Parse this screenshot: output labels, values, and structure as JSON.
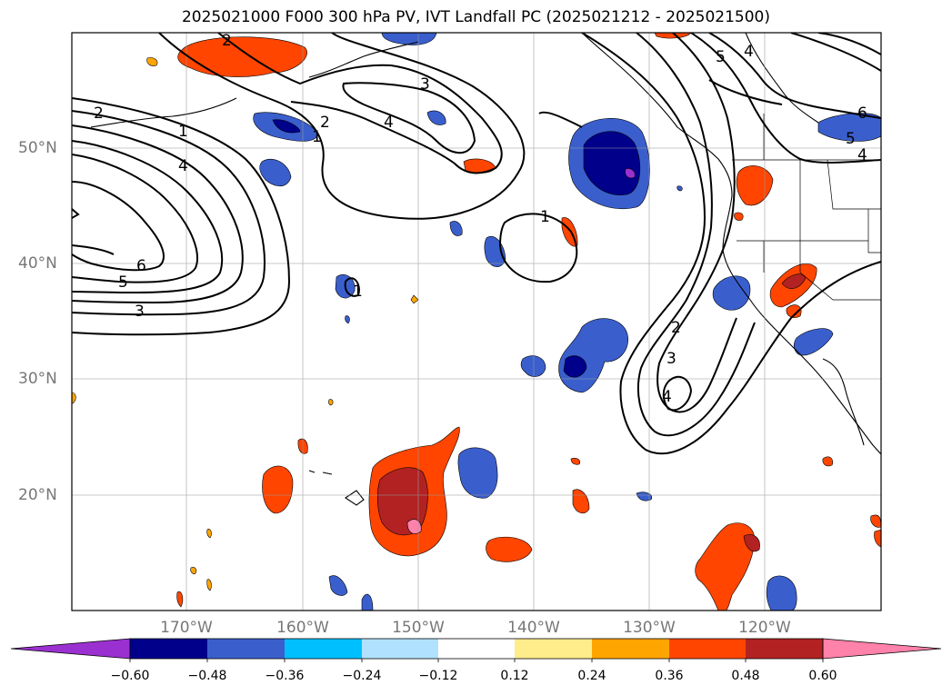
{
  "title": "2025021000 F000 300 hPa PV, IVT Landfall PC (2025021212 - 2025021500)",
  "map": {
    "projection": "PlateCarree",
    "lon_range": [
      -180,
      -110
    ],
    "lat_range": [
      10,
      60
    ],
    "gridlines": true,
    "lat_ticks": [
      {
        "label": "50°N",
        "value": 50
      },
      {
        "label": "40°N",
        "value": 40
      },
      {
        "label": "30°N",
        "value": 30
      },
      {
        "label": "20°N",
        "value": 20
      }
    ],
    "lon_ticks": [
      {
        "label": "170°W",
        "value": -170
      },
      {
        "label": "160°W",
        "value": -160
      },
      {
        "label": "150°W",
        "value": -150
      },
      {
        "label": "140°W",
        "value": -140
      },
      {
        "label": "130°W",
        "value": -130
      },
      {
        "label": "120°W",
        "value": -120
      }
    ],
    "pv_contour_levels": [
      1,
      2,
      3,
      4,
      5,
      6
    ],
    "pv_contour_labels": [
      "2",
      "1",
      "4",
      "6",
      "5",
      "3",
      "2",
      "3",
      "4",
      "1",
      "1",
      "1",
      "2",
      "3",
      "4",
      "5",
      "4",
      "6",
      "5",
      "4",
      "2"
    ]
  },
  "colorbar": {
    "ticks": [
      "−0.60",
      "−0.48",
      "−0.36",
      "−0.24",
      "−0.12",
      "0.12",
      "0.24",
      "0.36",
      "0.48",
      "0.60"
    ],
    "colors": [
      "#9b30d0",
      "#00008b",
      "#3a5fcd",
      "#00bfff",
      "#b0e2ff",
      "#ffffff",
      "#ffec8b",
      "#ffa500",
      "#ff4500",
      "#b22222",
      "#ff82ab"
    ],
    "extend": "both"
  }
}
